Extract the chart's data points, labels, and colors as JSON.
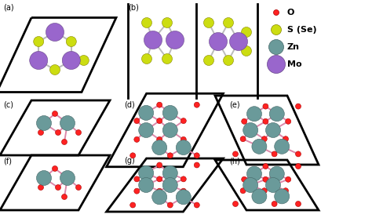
{
  "bg_color": "#FFFFFF",
  "O_color": "#FF2222",
  "S_color": "#CCDD11",
  "Zn_color": "#6A9A9A",
  "Mo_color": "#9966CC",
  "bond_MoS": "#BBBBBB",
  "bond_ZnO": "#DD88AA",
  "r_O": 3.5,
  "r_S": 6.5,
  "r_Zn": 9.5,
  "r_Mo": 11.5,
  "legend_items": [
    {
      "label": "O",
      "color": "#FF2222",
      "r": 3.5,
      "ec": "#AA0000"
    },
    {
      "label": "S (Se)",
      "color": "#CCDD11",
      "r": 6.5,
      "ec": "#888800"
    },
    {
      "label": "Zn",
      "color": "#6A9A9A",
      "r": 9.5,
      "ec": "#446666"
    },
    {
      "label": "Mo",
      "color": "#9966CC",
      "r": 11.5,
      "ec": "#664488"
    }
  ]
}
